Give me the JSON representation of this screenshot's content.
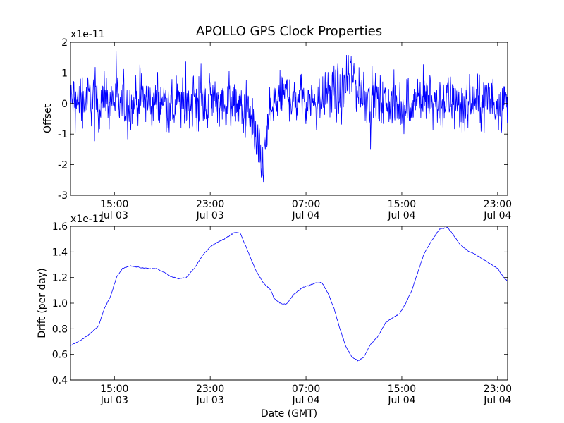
{
  "figure": {
    "title": "APOLLO GPS Clock Properties",
    "xlabel": "Date (GMT)"
  },
  "chart_data": [
    {
      "type": "line",
      "title": "APOLLO GPS Clock Properties",
      "ylabel": "Offset",
      "scale_label": "x1e-11",
      "ylim": [
        -3,
        2
      ],
      "yticks": [
        -3,
        -2,
        -1,
        0,
        1,
        2
      ],
      "xlim": [
        "2009-07-03T11:20",
        "2009-07-04T23:50"
      ],
      "xticks": [
        {
          "t": "2009-07-03T15:00",
          "time": "15:00",
          "date": "Jul 03"
        },
        {
          "t": "2009-07-03T23:00",
          "time": "23:00",
          "date": "Jul 03"
        },
        {
          "t": "2009-07-04T07:00",
          "time": "07:00",
          "date": "Jul 04"
        },
        {
          "t": "2009-07-04T15:00",
          "time": "15:00",
          "date": "Jul 04"
        },
        {
          "t": "2009-07-04T23:00",
          "time": "23:00",
          "date": "Jul 04"
        }
      ],
      "grid": false,
      "color": "#0000ff",
      "note_noise": "high-frequency noise about the envelope; amplitude ~0.4 (x1e-11)",
      "series": [
        {
          "x": [
            "2009-07-03T11:20",
            "2009-07-03T12:30",
            "2009-07-03T13:00",
            "2009-07-03T14:00",
            "2009-07-03T15:00",
            "2009-07-03T16:00",
            "2009-07-03T17:00",
            "2009-07-03T18:00",
            "2009-07-03T19:00",
            "2009-07-03T20:00",
            "2009-07-03T21:00",
            "2009-07-03T22:00",
            "2009-07-03T23:00",
            "2009-07-04T00:00",
            "2009-07-04T01:00",
            "2009-07-04T02:00",
            "2009-07-04T02:40",
            "2009-07-04T03:00",
            "2009-07-04T03:20",
            "2009-07-04T03:40",
            "2009-07-04T04:00",
            "2009-07-04T05:00",
            "2009-07-04T06:00",
            "2009-07-04T07:00",
            "2009-07-04T08:00",
            "2009-07-04T09:00",
            "2009-07-04T10:00",
            "2009-07-04T10:50",
            "2009-07-04T11:30",
            "2009-07-04T12:00",
            "2009-07-04T13:00",
            "2009-07-04T14:00",
            "2009-07-04T15:00",
            "2009-07-04T16:00",
            "2009-07-04T17:00",
            "2009-07-04T18:00",
            "2009-07-04T19:00",
            "2009-07-04T20:00",
            "2009-07-04T21:00",
            "2009-07-04T22:00",
            "2009-07-04T23:00",
            "2009-07-04T23:50"
          ],
          "y": [
            0.0,
            0.1,
            0.2,
            0.0,
            0.1,
            -0.1,
            0.2,
            0.0,
            0.1,
            -0.2,
            0.1,
            0.0,
            0.2,
            0.1,
            0.0,
            -0.3,
            -0.8,
            -1.6,
            -2.2,
            -1.2,
            -0.3,
            0.3,
            0.2,
            0.2,
            0.1,
            0.4,
            0.2,
            0.9,
            0.4,
            0.3,
            0.1,
            0.0,
            -0.1,
            0.1,
            0.2,
            0.0,
            0.1,
            -0.1,
            0.1,
            0.0,
            0.1,
            0.0
          ]
        }
      ]
    },
    {
      "type": "line",
      "ylabel": "Drift (per day)",
      "xlabel": "Date (GMT)",
      "scale_label": "x1e-11",
      "ylim": [
        0.4,
        1.6
      ],
      "yticks": [
        0.4,
        0.6,
        0.8,
        1.0,
        1.2,
        1.4,
        1.6
      ],
      "xlim": [
        "2009-07-03T11:20",
        "2009-07-04T23:50"
      ],
      "xticks": [
        {
          "t": "2009-07-03T15:00",
          "time": "15:00",
          "date": "Jul 03"
        },
        {
          "t": "2009-07-03T23:00",
          "time": "23:00",
          "date": "Jul 03"
        },
        {
          "t": "2009-07-04T07:00",
          "time": "07:00",
          "date": "Jul 04"
        },
        {
          "t": "2009-07-04T15:00",
          "time": "15:00",
          "date": "Jul 04"
        },
        {
          "t": "2009-07-04T23:00",
          "time": "23:00",
          "date": "Jul 04"
        }
      ],
      "grid": false,
      "color": "#0000ff",
      "series": [
        {
          "x": [
            "2009-07-03T11:20",
            "2009-07-03T12:00",
            "2009-07-03T12:40",
            "2009-07-03T13:10",
            "2009-07-03T13:40",
            "2009-07-03T14:10",
            "2009-07-03T14:40",
            "2009-07-03T15:10",
            "2009-07-03T15:40",
            "2009-07-03T16:20",
            "2009-07-03T17:00",
            "2009-07-03T17:50",
            "2009-07-03T18:30",
            "2009-07-03T19:10",
            "2009-07-03T19:40",
            "2009-07-03T20:20",
            "2009-07-03T21:00",
            "2009-07-03T21:40",
            "2009-07-03T22:20",
            "2009-07-03T23:00",
            "2009-07-03T23:40",
            "2009-07-04T00:10",
            "2009-07-04T00:40",
            "2009-07-04T01:00",
            "2009-07-04T01:30",
            "2009-07-04T02:10",
            "2009-07-04T02:50",
            "2009-07-04T03:30",
            "2009-07-04T04:00",
            "2009-07-04T04:20",
            "2009-07-04T04:50",
            "2009-07-04T05:20",
            "2009-07-04T06:00",
            "2009-07-04T06:40",
            "2009-07-04T07:20",
            "2009-07-04T07:50",
            "2009-07-04T08:20",
            "2009-07-04T08:50",
            "2009-07-04T09:20",
            "2009-07-04T09:50",
            "2009-07-04T10:20",
            "2009-07-04T10:50",
            "2009-07-04T11:20",
            "2009-07-04T11:50",
            "2009-07-04T12:20",
            "2009-07-04T13:00",
            "2009-07-04T13:40",
            "2009-07-04T14:20",
            "2009-07-04T14:50",
            "2009-07-04T15:20",
            "2009-07-04T15:50",
            "2009-07-04T16:20",
            "2009-07-04T16:50",
            "2009-07-04T17:30",
            "2009-07-04T18:10",
            "2009-07-04T18:50",
            "2009-07-04T19:20",
            "2009-07-04T19:50",
            "2009-07-04T20:30",
            "2009-07-04T21:10",
            "2009-07-04T21:50",
            "2009-07-04T22:30",
            "2009-07-04T23:00",
            "2009-07-04T23:30",
            "2009-07-04T23:50"
          ],
          "y": [
            0.67,
            0.7,
            0.74,
            0.78,
            0.82,
            0.96,
            1.05,
            1.2,
            1.27,
            1.29,
            1.28,
            1.27,
            1.27,
            1.24,
            1.21,
            1.19,
            1.2,
            1.27,
            1.37,
            1.44,
            1.48,
            1.5,
            1.53,
            1.55,
            1.55,
            1.4,
            1.25,
            1.15,
            1.11,
            1.04,
            1.0,
            0.99,
            1.07,
            1.12,
            1.14,
            1.16,
            1.16,
            1.08,
            0.96,
            0.8,
            0.66,
            0.58,
            0.55,
            0.58,
            0.67,
            0.74,
            0.85,
            0.89,
            0.92,
            1.0,
            1.1,
            1.24,
            1.38,
            1.49,
            1.58,
            1.59,
            1.53,
            1.46,
            1.41,
            1.38,
            1.34,
            1.3,
            1.27,
            1.2,
            1.17
          ]
        }
      ]
    }
  ]
}
